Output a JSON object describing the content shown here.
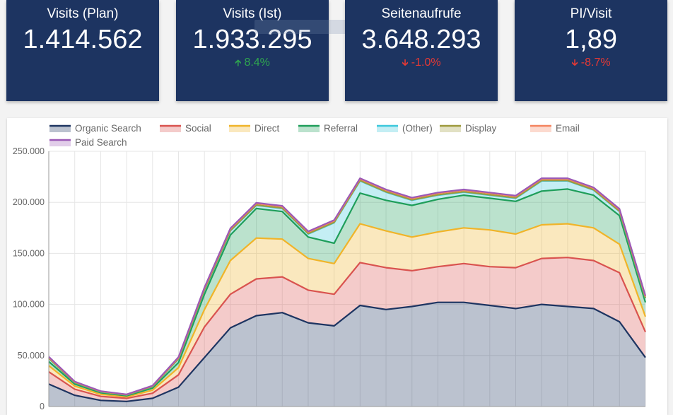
{
  "kpis": [
    {
      "title": "Visits (Plan)",
      "value": "1.414.562",
      "change": "",
      "direction": "none"
    },
    {
      "title": "Visits (Ist)",
      "value": "1.933.295",
      "change": "8.4%",
      "direction": "up"
    },
    {
      "title": "Seitenaufrufe",
      "value": "3.648.293",
      "change": "-1.0%",
      "direction": "down"
    },
    {
      "title": "PI/Visit",
      "value": "1,89",
      "change": "-8.7%",
      "direction": "down"
    }
  ],
  "colors": {
    "kpi_bg": "#1d3461",
    "up": "#2ea44f",
    "down": "#e53935"
  },
  "chart_data": {
    "type": "area",
    "stacked": true,
    "y_tick_labels": [
      "0",
      "50.000",
      "100.000",
      "150.000",
      "200.000",
      "250.000"
    ],
    "ylim": [
      0,
      250000
    ],
    "grid": true,
    "legend_position": "top",
    "x": [
      1,
      2,
      3,
      4,
      5,
      6,
      7,
      8,
      9,
      10,
      11,
      12,
      13,
      14,
      15,
      16,
      17,
      18,
      19,
      20,
      21,
      22,
      23,
      24
    ],
    "series": [
      {
        "name": "Organic Search",
        "color": "#1d3461",
        "values": [
          22000,
          11000,
          6000,
          5000,
          8000,
          19000,
          48000,
          77000,
          89000,
          92000,
          82000,
          79000,
          99000,
          95000,
          98000,
          102000,
          102000,
          99000,
          96000,
          100000,
          98000,
          96000,
          83000,
          48000
        ]
      },
      {
        "name": "Social",
        "color": "#d9534f",
        "values": [
          12000,
          6000,
          4000,
          3000,
          5000,
          12000,
          30000,
          33000,
          36000,
          35000,
          32000,
          31000,
          42000,
          41000,
          35000,
          35000,
          38000,
          38000,
          40000,
          45000,
          48000,
          47000,
          48000,
          25000
        ]
      },
      {
        "name": "Direct",
        "color": "#f0b429",
        "values": [
          6000,
          3000,
          2000,
          1500,
          3000,
          7000,
          17000,
          33000,
          40000,
          37000,
          31000,
          30000,
          38000,
          36000,
          33000,
          34000,
          35000,
          36000,
          33000,
          33000,
          33000,
          32000,
          28000,
          15000
        ]
      },
      {
        "name": "Referral",
        "color": "#1e9e5a",
        "values": [
          4000,
          2000,
          1500,
          1000,
          2000,
          5000,
          15000,
          25000,
          29000,
          27000,
          21000,
          20000,
          30000,
          30000,
          31000,
          32000,
          32000,
          31000,
          32000,
          33000,
          34000,
          32000,
          28000,
          14000
        ]
      },
      {
        "name": "(Other)",
        "color": "#3cc8dc",
        "values": [
          3000,
          1500,
          1000,
          800,
          1500,
          3500,
          4000,
          4000,
          3000,
          3000,
          3000,
          20000,
          12000,
          8000,
          5000,
          4000,
          3000,
          3000,
          3000,
          10000,
          8000,
          5000,
          4000,
          4000
        ]
      },
      {
        "name": "Display",
        "color": "#9e9a3c",
        "values": [
          300,
          200,
          100,
          100,
          200,
          300,
          400,
          400,
          400,
          400,
          400,
          400,
          400,
          400,
          400,
          400,
          400,
          400,
          400,
          400,
          400,
          400,
          400,
          400
        ]
      },
      {
        "name": "Email",
        "color": "#f4845f",
        "values": [
          1000,
          500,
          300,
          300,
          500,
          1000,
          1500,
          1500,
          1500,
          1500,
          1500,
          1500,
          1500,
          1500,
          1500,
          1500,
          1500,
          1500,
          1500,
          1500,
          1500,
          1500,
          1500,
          1500
        ]
      },
      {
        "name": "Paid Search",
        "color": "#9b59b6",
        "values": [
          500,
          300,
          200,
          200,
          300,
          700,
          700,
          700,
          700,
          700,
          700,
          700,
          700,
          700,
          700,
          700,
          700,
          700,
          700,
          700,
          700,
          700,
          700,
          700
        ]
      }
    ]
  }
}
